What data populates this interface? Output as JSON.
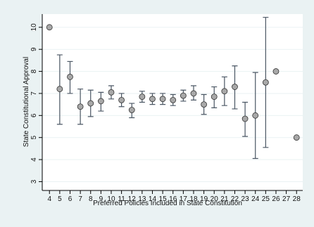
{
  "chart_data": {
    "type": "errorbar",
    "x_label": "Preferred Policies Included in State Constitution",
    "y_label": "State Constitutional Approval",
    "x": [
      4,
      5,
      6,
      7,
      8,
      9,
      10,
      11,
      12,
      13,
      14,
      15,
      16,
      17,
      18,
      19,
      20,
      21,
      22,
      23,
      24,
      25,
      26,
      27,
      28
    ],
    "values": [
      10,
      7.2,
      7.75,
      6.4,
      6.55,
      6.65,
      7.05,
      6.7,
      6.25,
      6.85,
      6.75,
      6.75,
      6.7,
      6.9,
      7.0,
      6.5,
      6.85,
      7.1,
      7.3,
      5.85,
      6.0,
      7.5,
      8.0,
      null,
      5.0
    ],
    "lower": [
      null,
      5.6,
      7.0,
      5.6,
      5.95,
      6.2,
      6.75,
      6.4,
      5.9,
      6.6,
      6.5,
      6.5,
      6.45,
      6.65,
      6.7,
      6.05,
      6.35,
      6.45,
      6.3,
      5.05,
      4.05,
      4.55,
      null,
      null,
      null
    ],
    "upper": [
      null,
      8.75,
      8.45,
      7.2,
      7.15,
      7.05,
      7.35,
      7.0,
      6.55,
      7.1,
      7.0,
      7.0,
      6.95,
      7.15,
      7.35,
      6.95,
      7.3,
      7.75,
      8.25,
      6.6,
      7.95,
      10.45,
      null,
      null,
      null
    ],
    "marker_color": "#a8a8a8",
    "bar_color": "#4a5663",
    "xlim": [
      3.3,
      28.6
    ],
    "ylim": [
      2.6,
      10.6
    ],
    "xticks": [
      4,
      5,
      6,
      7,
      8,
      9,
      10,
      11,
      12,
      13,
      14,
      15,
      16,
      17,
      18,
      19,
      20,
      21,
      22,
      23,
      24,
      25,
      26,
      27,
      28
    ],
    "yticks": [
      3,
      4,
      5,
      6,
      7,
      8,
      9,
      10
    ],
    "grid": true
  }
}
